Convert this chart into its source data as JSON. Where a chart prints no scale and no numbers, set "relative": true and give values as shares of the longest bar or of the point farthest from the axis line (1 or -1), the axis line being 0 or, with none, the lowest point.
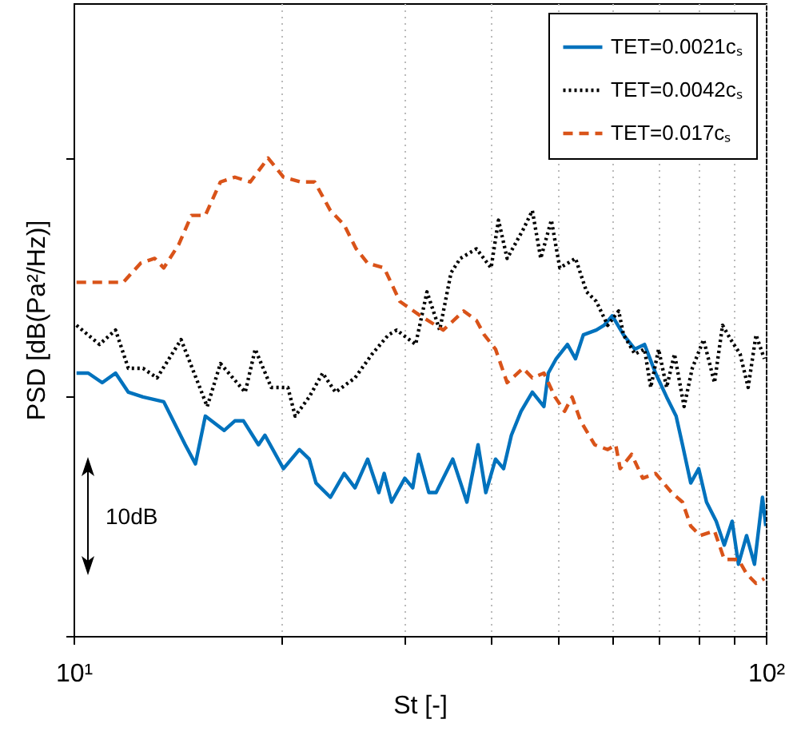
{
  "chart_data": {
    "type": "line",
    "xlabel": "St [-]",
    "ylabel": "PSD [dB(Pa²/Hz)]",
    "relative": true,
    "log": "x",
    "grid": "x",
    "legend": "top right",
    "xlim": [
      10,
      100
    ],
    "xticks": [
      {
        "value": 10,
        "label": "10¹"
      },
      {
        "value": 20,
        "label": null
      },
      {
        "value": 30,
        "label": null
      },
      {
        "value": 40,
        "label": null
      },
      {
        "value": 50,
        "label": null
      },
      {
        "value": 60,
        "label": null
      },
      {
        "value": 70,
        "label": null
      },
      {
        "value": 80,
        "label": null
      },
      {
        "value": 90,
        "label": null
      },
      {
        "value": 100,
        "label": "10²"
      }
    ],
    "annotations": [
      "10dB"
    ],
    "series": [
      {
        "name": "TET=0.0021cₛ",
        "color": "#0072bd",
        "line_style": "solid",
        "x": [
          10.1,
          10.5,
          11.0,
          11.5,
          12.0,
          12.6,
          13.5,
          14.5,
          15.0,
          15.5,
          16.5,
          17.1,
          17.6,
          18.5,
          18.9,
          20.1,
          21.2,
          21.9,
          22.4,
          23.5,
          24.6,
          25.5,
          26.6,
          27.6,
          28.1,
          28.8,
          30.1,
          30.9,
          31.5,
          32.6,
          33.4,
          35.3,
          37.0,
          38.4,
          39.4,
          40.7,
          41.8,
          42.9,
          44.3,
          46.0,
          47.8,
          48.5,
          49.8,
          51.7,
          53.1,
          54.5,
          56.9,
          58.4,
          60.0,
          62.3,
          64.7,
          66.8,
          69.3,
          71.9,
          74.2,
          75.8,
          77.9,
          80.0,
          82.1,
          84.8,
          87.1,
          89.4,
          91.3,
          93.8,
          96.3,
          98.9,
          100
        ],
        "values": [
          0.55,
          0.55,
          0.53,
          0.55,
          0.51,
          0.5,
          0.49,
          0.4,
          0.36,
          0.46,
          0.43,
          0.45,
          0.45,
          0.4,
          0.42,
          0.35,
          0.39,
          0.37,
          0.32,
          0.29,
          0.34,
          0.31,
          0.37,
          0.3,
          0.34,
          0.28,
          0.33,
          0.31,
          0.38,
          0.3,
          0.3,
          0.37,
          0.28,
          0.4,
          0.3,
          0.37,
          0.35,
          0.42,
          0.47,
          0.51,
          0.48,
          0.55,
          0.58,
          0.61,
          0.58,
          0.63,
          0.64,
          0.65,
          0.67,
          0.63,
          0.6,
          0.61,
          0.55,
          0.5,
          0.46,
          0.4,
          0.32,
          0.35,
          0.28,
          0.24,
          0.19,
          0.24,
          0.15,
          0.21,
          0.15,
          0.29,
          0.23
        ]
      },
      {
        "name": "TET=0.0042cₛ",
        "color": "#000000",
        "line_style": "dotted",
        "x": [
          10.1,
          10.9,
          11.5,
          12.0,
          12.6,
          13.2,
          14.3,
          15.6,
          16.3,
          17.7,
          18.3,
          19.3,
          20.4,
          20.9,
          21.9,
          22.9,
          23.9,
          25.5,
          27.0,
          28.5,
          29.3,
          31.2,
          32.4,
          33.8,
          35.1,
          36.2,
          38.2,
          40.1,
          41.1,
          42.3,
          44.6,
          46.0,
          47.3,
          49.0,
          50.4,
          53.1,
          55.1,
          56.9,
          59.1,
          61.3,
          62.3,
          64.7,
          66.8,
          68.2,
          70.0,
          71.9,
          73.8,
          76.2,
          78.3,
          81.3,
          84.3,
          86.6,
          89.0,
          91.8,
          94.3,
          96.8,
          99.5
        ],
        "values": [
          0.65,
          0.61,
          0.64,
          0.56,
          0.56,
          0.54,
          0.62,
          0.48,
          0.57,
          0.51,
          0.6,
          0.52,
          0.52,
          0.46,
          0.5,
          0.55,
          0.51,
          0.54,
          0.59,
          0.63,
          0.64,
          0.61,
          0.72,
          0.64,
          0.76,
          0.79,
          0.81,
          0.77,
          0.87,
          0.79,
          0.85,
          0.89,
          0.79,
          0.87,
          0.77,
          0.79,
          0.72,
          0.7,
          0.65,
          0.68,
          0.63,
          0.59,
          0.6,
          0.52,
          0.6,
          0.52,
          0.59,
          0.48,
          0.56,
          0.62,
          0.53,
          0.65,
          0.62,
          0.59,
          0.52,
          0.63,
          0.58
        ]
      },
      {
        "name": "TET=0.017cₛ",
        "color": "#d95319",
        "line_style": "dashed",
        "x": [
          10.1,
          10.8,
          11.8,
          12.5,
          13.1,
          13.5,
          14.2,
          14.8,
          15.5,
          16.3,
          17.1,
          18.0,
          19.1,
          20.1,
          21.3,
          22.3,
          23.5,
          24.6,
          25.6,
          26.6,
          28.1,
          29.6,
          31.7,
          34.2,
          36.6,
          38.2,
          39.2,
          40.7,
          42.3,
          44.6,
          46.0,
          47.8,
          49.6,
          51.2,
          52.5,
          54.0,
          56.6,
          59.1,
          60.7,
          61.6,
          64.0,
          66.4,
          69.3,
          73.1,
          75.8,
          77.9,
          80.4,
          84.3,
          87.1,
          91.3,
          93.8,
          96.8,
          99.5
        ],
        "values": [
          0.74,
          0.74,
          0.74,
          0.78,
          0.79,
          0.77,
          0.82,
          0.88,
          0.88,
          0.95,
          0.96,
          0.95,
          1,
          0.96,
          0.95,
          0.95,
          0.89,
          0.86,
          0.81,
          0.78,
          0.77,
          0.7,
          0.67,
          0.64,
          0.68,
          0.66,
          0.63,
          0.6,
          0.53,
          0.56,
          0.54,
          0.55,
          0.5,
          0.47,
          0.5,
          0.45,
          0.4,
          0.39,
          0.4,
          0.35,
          0.38,
          0.33,
          0.34,
          0.3,
          0.28,
          0.23,
          0.21,
          0.22,
          0.16,
          0.16,
          0.13,
          0.11,
          0.12
        ]
      }
    ]
  }
}
